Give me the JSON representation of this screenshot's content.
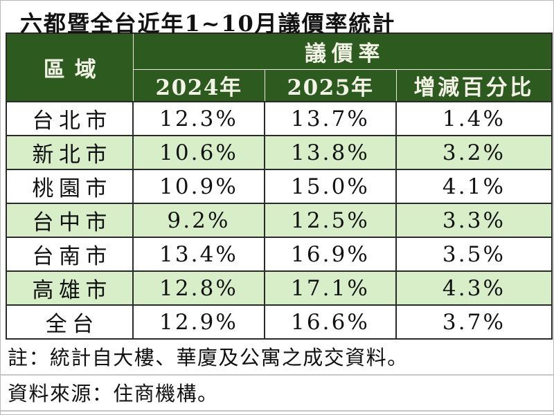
{
  "title": "六都暨全台近年1~10月議價率統計",
  "table": {
    "region_header": "區域",
    "group_header": "議價率",
    "columns": [
      "2024年",
      "2025年",
      "增減百分比"
    ],
    "rows": [
      {
        "region": "台北市",
        "y2024": "12.3%",
        "y2025": "13.7%",
        "diff": "1.4%"
      },
      {
        "region": "新北市",
        "y2024": "10.6%",
        "y2025": "13.8%",
        "diff": "3.2%"
      },
      {
        "region": "桃園市",
        "y2024": "10.9%",
        "y2025": "15.0%",
        "diff": "4.1%"
      },
      {
        "region": "台中市",
        "y2024": "9.2%",
        "y2025": "12.5%",
        "diff": "3.3%"
      },
      {
        "region": "台南市",
        "y2024": "13.4%",
        "y2025": "16.9%",
        "diff": "3.5%"
      },
      {
        "region": "高雄市",
        "y2024": "12.8%",
        "y2025": "17.1%",
        "diff": "4.3%"
      },
      {
        "region": "全台",
        "y2024": "12.9%",
        "y2025": "16.6%",
        "diff": "3.7%"
      }
    ]
  },
  "notes": {
    "note1": "註：統計自大樓、華廈及公寓之成交資料。",
    "note2": "資料來源：住商機構。"
  },
  "colors": {
    "header_green": "#2d5a1e",
    "row_green": "#d7eec8",
    "header_text": "#f2f2e6"
  },
  "chart_data": {
    "type": "table",
    "title": "六都暨全台近年1~10月議價率統計",
    "group_header": "議價率",
    "columns": [
      "區域",
      "2024年",
      "2025年",
      "增減百分比"
    ],
    "unit": "%",
    "rows": [
      [
        "台北市",
        12.3,
        13.7,
        1.4
      ],
      [
        "新北市",
        10.6,
        13.8,
        3.2
      ],
      [
        "桃園市",
        10.9,
        15.0,
        4.1
      ],
      [
        "台中市",
        9.2,
        12.5,
        3.3
      ],
      [
        "台南市",
        13.4,
        16.9,
        3.5
      ],
      [
        "高雄市",
        12.8,
        17.1,
        4.3
      ],
      [
        "全台",
        12.9,
        16.6,
        3.7
      ]
    ],
    "notes": [
      "註：統計自大樓、華廈及公寓之成交資料。",
      "資料來源：住商機構。"
    ],
    "layout": {
      "striped_rows": true,
      "stripe_color": "#d7eec8",
      "header_color": "#2d5a1e"
    }
  }
}
